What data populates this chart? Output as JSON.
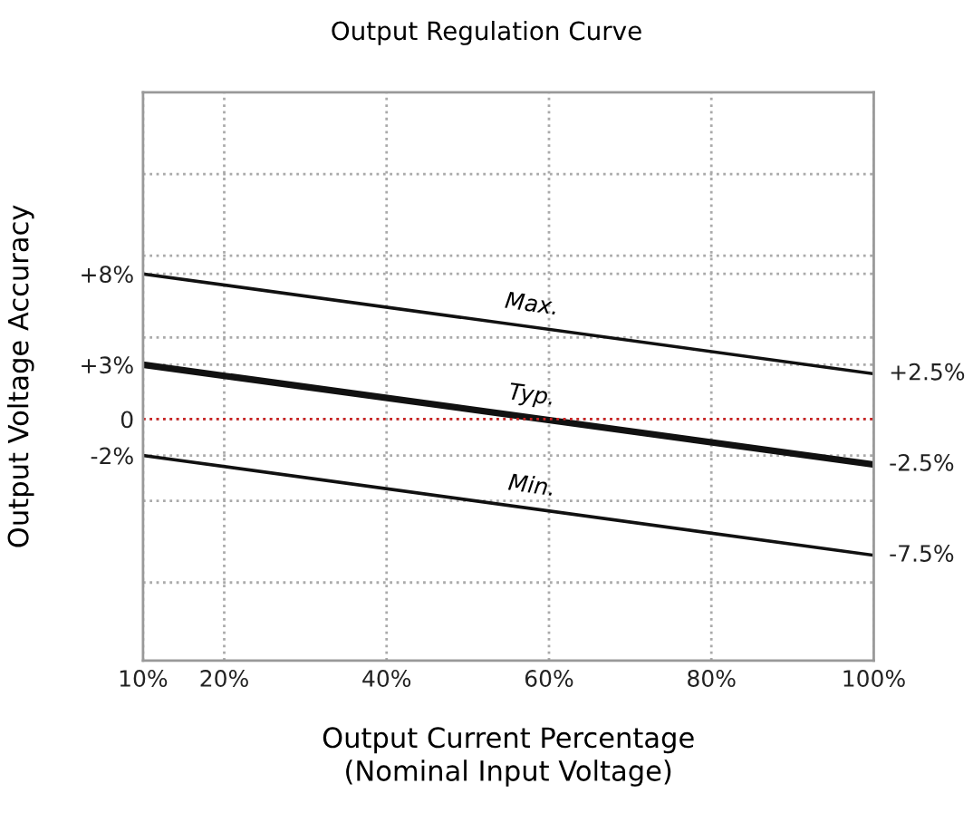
{
  "chart_data": {
    "type": "line",
    "title": "Output Regulation Curve",
    "xlabel": "Output Current Percentage\n(Nominal Input Voltage)",
    "ylabel": "Output Voltage Accuracy",
    "x": [
      10,
      100
    ],
    "xlim": [
      10,
      100
    ],
    "xticks": [
      {
        "value": 10,
        "label": "10%"
      },
      {
        "value": 20,
        "label": "20%"
      },
      {
        "value": 40,
        "label": "40%"
      },
      {
        "value": 60,
        "label": "60%"
      },
      {
        "value": 80,
        "label": "80%"
      },
      {
        "value": 100,
        "label": "100%"
      }
    ],
    "ylim": [
      -13.3,
      18
    ],
    "yticks": [
      {
        "value": -9,
        "label": null
      },
      {
        "value": -4.5,
        "label": null
      },
      {
        "value": -2,
        "label": "-2%"
      },
      {
        "value": 0,
        "label": "0"
      },
      {
        "value": 3,
        "label": "+3%"
      },
      {
        "value": 4.5,
        "label": null
      },
      {
        "value": 8,
        "label": "+8%"
      },
      {
        "value": 9,
        "label": null
      },
      {
        "value": 13.5,
        "label": null
      }
    ],
    "series": [
      {
        "name": "Max.",
        "color": "#111111",
        "values": [
          8,
          2.5
        ],
        "value_labels": [
          null,
          "+2.5%"
        ]
      },
      {
        "name": "Typ.",
        "color": "#111111",
        "values": [
          3,
          -2.5
        ],
        "value_labels": [
          null,
          "-2.5%"
        ]
      },
      {
        "name": "Min.",
        "color": "#111111",
        "values": [
          -2,
          -7.5
        ],
        "value_labels": [
          null,
          "-7.5%"
        ]
      }
    ],
    "ref_lines": [
      {
        "axis": "y",
        "value": 0,
        "color": "#cc2222",
        "line_style": "dotted"
      }
    ],
    "grid": true,
    "legend": false,
    "marker": "none",
    "line_style": "solid"
  }
}
